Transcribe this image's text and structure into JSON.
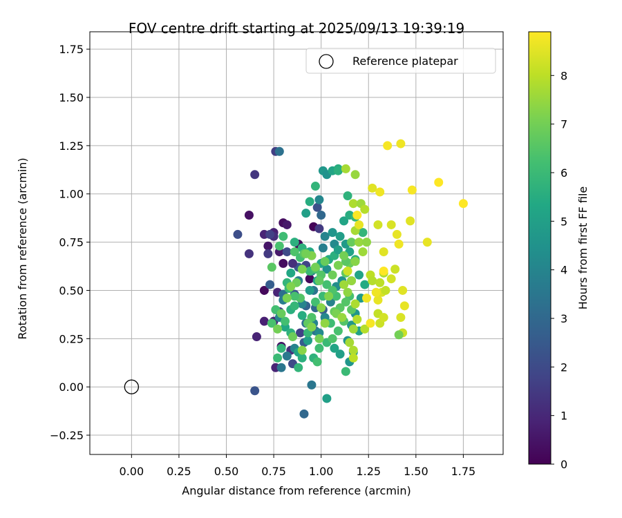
{
  "chart_data": {
    "type": "scatter",
    "title": "FOV centre drift starting at 2025/09/13 19:39:19",
    "xlabel": "Angular distance from reference (arcmin)",
    "ylabel": "Rotation from reference (arcmin)",
    "xlim": [
      -0.22,
      1.96
    ],
    "ylim": [
      -0.35,
      1.84
    ],
    "x_ticks": [
      0.0,
      0.25,
      0.5,
      0.75,
      1.0,
      1.25,
      1.5,
      1.75
    ],
    "x_tick_labels": [
      "0.00",
      "0.25",
      "0.50",
      "0.75",
      "1.00",
      "1.25",
      "1.50",
      "1.75"
    ],
    "y_ticks": [
      -0.25,
      0.0,
      0.25,
      0.5,
      0.75,
      1.0,
      1.25,
      1.5,
      1.75
    ],
    "y_tick_labels": [
      "−0.25",
      "0.00",
      "0.25",
      "0.50",
      "0.75",
      "1.00",
      "1.25",
      "1.50",
      "1.75"
    ],
    "grid": true,
    "legend": {
      "position": "top-right",
      "entries": [
        "Reference platepar"
      ]
    },
    "reference_point": {
      "name": "Reference platepar",
      "x": 0.0,
      "y": 0.0
    },
    "colorbar": {
      "label": "Hours from first FF file",
      "colormap": "viridis",
      "range": [
        0,
        8.9
      ],
      "ticks": [
        0,
        1,
        2,
        3,
        4,
        5,
        6,
        7,
        8
      ],
      "tick_labels": [
        "0",
        "1",
        "2",
        "3",
        "4",
        "5",
        "6",
        "7",
        "8"
      ]
    },
    "points": [
      [
        0.62,
        0.89,
        0.4
      ],
      [
        0.7,
        0.79,
        0.9
      ],
      [
        0.75,
        0.8,
        0.8
      ],
      [
        0.8,
        0.85,
        0.3
      ],
      [
        0.82,
        0.84,
        0.6
      ],
      [
        0.88,
        0.74,
        0.1
      ],
      [
        0.72,
        0.73,
        0.5
      ],
      [
        0.78,
        0.7,
        0.6
      ],
      [
        0.75,
        0.78,
        1.2
      ],
      [
        0.7,
        0.5,
        0.2
      ],
      [
        0.77,
        0.49,
        0.9
      ],
      [
        0.7,
        0.34,
        0.8
      ],
      [
        0.66,
        0.26,
        0.9
      ],
      [
        0.75,
        0.34,
        1.0
      ],
      [
        0.79,
        0.21,
        0.5
      ],
      [
        0.8,
        0.64,
        0.3
      ],
      [
        0.94,
        0.56,
        0.2
      ],
      [
        0.96,
        0.83,
        0.1
      ],
      [
        0.73,
        0.79,
        1.7
      ],
      [
        0.56,
        0.79,
        2.1
      ],
      [
        0.62,
        0.69,
        1.3
      ],
      [
        0.65,
        1.1,
        1.4
      ],
      [
        0.76,
        1.22,
        1.6
      ],
      [
        0.78,
        1.22,
        3.3
      ],
      [
        0.72,
        0.69,
        1.5
      ],
      [
        0.73,
        0.53,
        2.6
      ],
      [
        0.78,
        0.39,
        1.6
      ],
      [
        0.84,
        0.19,
        1.2
      ],
      [
        0.85,
        0.12,
        2.0
      ],
      [
        0.76,
        0.1,
        0.9
      ],
      [
        0.65,
        -0.02,
        2.3
      ],
      [
        0.89,
        0.28,
        1.7
      ],
      [
        0.91,
        0.23,
        2.6
      ],
      [
        0.86,
        0.48,
        2.3
      ],
      [
        0.8,
        0.48,
        3.2
      ],
      [
        0.88,
        0.62,
        2.5
      ],
      [
        0.95,
        0.68,
        2.7
      ],
      [
        0.92,
        0.42,
        2.8
      ],
      [
        0.97,
        0.41,
        3.0
      ],
      [
        0.98,
        0.93,
        2.2
      ],
      [
        1.0,
        0.89,
        3.0
      ],
      [
        0.99,
        0.82,
        1.5
      ],
      [
        0.85,
        0.64,
        1.2
      ],
      [
        0.92,
        0.63,
        1.8
      ],
      [
        0.82,
        0.7,
        2.0
      ],
      [
        0.96,
        0.5,
        3.4
      ],
      [
        0.97,
        0.29,
        3.3
      ],
      [
        1.01,
        0.4,
        2.6
      ],
      [
        0.95,
        0.01,
        3.5
      ],
      [
        0.91,
        -0.14,
        3.0
      ],
      [
        0.79,
        0.1,
        3.5
      ],
      [
        0.82,
        0.16,
        3.6
      ],
      [
        0.86,
        0.2,
        3.9
      ],
      [
        0.78,
        0.36,
        4.0
      ],
      [
        0.8,
        0.45,
        3.7
      ],
      [
        0.9,
        0.43,
        4.0
      ],
      [
        0.88,
        0.55,
        3.8
      ],
      [
        0.95,
        0.6,
        3.6
      ],
      [
        1.01,
        0.72,
        3.8
      ],
      [
        0.92,
        0.33,
        3.2
      ],
      [
        0.96,
        0.33,
        4.0
      ],
      [
        0.99,
        0.28,
        4.2
      ],
      [
        1.02,
        0.36,
        4.1
      ],
      [
        1.05,
        0.44,
        3.9
      ],
      [
        1.08,
        0.52,
        4.3
      ],
      [
        1.11,
        0.55,
        4.5
      ],
      [
        1.03,
        0.61,
        4.4
      ],
      [
        1.07,
        0.74,
        4.2
      ],
      [
        1.02,
        0.78,
        4.0
      ],
      [
        0.99,
        0.97,
        4.1
      ],
      [
        1.01,
        1.12,
        4.7
      ],
      [
        1.03,
        1.1,
        4.5
      ],
      [
        1.06,
        1.12,
        5.2
      ],
      [
        1.09,
        1.13,
        5.5
      ],
      [
        1.09,
        1.12,
        5.6
      ],
      [
        1.06,
        0.8,
        4.6
      ],
      [
        1.1,
        0.78,
        4.9
      ],
      [
        1.13,
        0.74,
        4.8
      ],
      [
        1.15,
        0.7,
        5.1
      ],
      [
        1.18,
        0.66,
        5.6
      ],
      [
        1.16,
        0.55,
        5.0
      ],
      [
        1.2,
        0.58,
        5.2
      ],
      [
        1.23,
        0.53,
        5.4
      ],
      [
        1.21,
        0.46,
        4.8
      ],
      [
        1.18,
        0.38,
        4.6
      ],
      [
        1.16,
        0.32,
        4.7
      ],
      [
        1.2,
        0.29,
        5.1
      ],
      [
        1.14,
        0.24,
        4.5
      ],
      [
        1.17,
        0.18,
        4.8
      ],
      [
        1.15,
        0.13,
        4.6
      ],
      [
        1.1,
        0.17,
        5.0
      ],
      [
        1.07,
        0.2,
        5.2
      ],
      [
        1.13,
        0.08,
        6.0
      ],
      [
        1.03,
        -0.06,
        5.0
      ],
      [
        0.93,
        0.24,
        5.0
      ],
      [
        0.94,
        0.5,
        4.9
      ],
      [
        0.98,
        0.55,
        5.1
      ],
      [
        1.0,
        0.64,
        5.3
      ],
      [
        1.04,
        0.66,
        5.4
      ],
      [
        1.07,
        0.68,
        5.6
      ],
      [
        1.09,
        0.71,
        5.0
      ],
      [
        1.12,
        0.86,
        5.2
      ],
      [
        1.15,
        0.89,
        5.5
      ],
      [
        1.18,
        0.88,
        5.9
      ],
      [
        1.22,
        0.8,
        5.8
      ],
      [
        1.14,
        0.99,
        5.7
      ],
      [
        0.97,
        1.04,
        5.8
      ],
      [
        0.94,
        0.96,
        5.5
      ],
      [
        0.92,
        0.9,
        5.0
      ],
      [
        0.94,
        0.7,
        5.4
      ],
      [
        0.9,
        0.72,
        5.7
      ],
      [
        0.86,
        0.75,
        5.6
      ],
      [
        0.84,
        0.59,
        5.3
      ],
      [
        0.82,
        0.54,
        5.8
      ],
      [
        0.84,
        0.4,
        5.6
      ],
      [
        0.81,
        0.31,
        5.3
      ],
      [
        0.84,
        0.28,
        5.7
      ],
      [
        0.86,
        0.42,
        5.9
      ],
      [
        0.9,
        0.37,
        5.5
      ],
      [
        0.93,
        0.28,
        5.9
      ],
      [
        0.88,
        0.18,
        5.2
      ],
      [
        0.9,
        0.15,
        5.6
      ],
      [
        0.88,
        0.1,
        5.8
      ],
      [
        0.96,
        0.15,
        5.7
      ],
      [
        0.98,
        0.13,
        6.2
      ],
      [
        0.99,
        0.2,
        6.1
      ],
      [
        1.03,
        0.23,
        6.0
      ],
      [
        1.06,
        0.25,
        6.4
      ],
      [
        1.09,
        0.29,
        6.3
      ],
      [
        1.12,
        0.34,
        6.5
      ],
      [
        1.16,
        0.4,
        6.6
      ],
      [
        1.15,
        0.47,
        6.3
      ],
      [
        1.08,
        0.47,
        6.2
      ],
      [
        1.05,
        0.33,
        6.1
      ],
      [
        1.01,
        0.47,
        6.0
      ],
      [
        0.97,
        0.44,
        6.2
      ],
      [
        0.95,
        0.36,
        6.4
      ],
      [
        0.93,
        0.33,
        6.7
      ],
      [
        0.89,
        0.46,
        6.5
      ],
      [
        0.86,
        0.47,
        6.3
      ],
      [
        0.83,
        0.51,
        6.0
      ],
      [
        0.81,
        0.34,
        6.2
      ],
      [
        0.77,
        0.15,
        6.0
      ],
      [
        0.79,
        0.2,
        5.8
      ],
      [
        0.74,
        0.33,
        6.3
      ],
      [
        0.76,
        0.4,
        6.2
      ],
      [
        0.78,
        0.73,
        6.3
      ],
      [
        0.8,
        0.78,
        6.1
      ],
      [
        0.86,
        0.7,
        6.4
      ],
      [
        0.89,
        0.67,
        6.2
      ],
      [
        0.91,
        0.69,
        6.6
      ],
      [
        0.94,
        0.6,
        6.0
      ],
      [
        0.97,
        0.61,
        6.3
      ],
      [
        1.0,
        0.58,
        6.5
      ],
      [
        1.03,
        0.53,
        6.2
      ],
      [
        1.06,
        0.5,
        6.4
      ],
      [
        1.07,
        0.39,
        6.8
      ],
      [
        1.1,
        0.41,
        6.6
      ],
      [
        1.13,
        0.44,
        6.5
      ],
      [
        1.13,
        0.59,
        6.7
      ],
      [
        1.15,
        0.64,
        6.9
      ],
      [
        1.16,
        0.75,
        6.8
      ],
      [
        1.13,
        0.65,
        6.6
      ],
      [
        1.12,
        0.68,
        7.0
      ],
      [
        1.09,
        0.63,
        7.1
      ],
      [
        1.06,
        0.58,
        6.9
      ],
      [
        1.02,
        0.65,
        6.8
      ],
      [
        0.99,
        0.55,
        6.7
      ],
      [
        0.97,
        0.62,
        7.0
      ],
      [
        0.95,
        0.68,
        7.2
      ],
      [
        0.92,
        0.69,
        7.0
      ],
      [
        0.9,
        0.61,
        7.1
      ],
      [
        0.87,
        0.54,
        6.9
      ],
      [
        0.84,
        0.52,
        7.2
      ],
      [
        0.82,
        0.46,
        7.1
      ],
      [
        0.79,
        0.38,
        6.8
      ],
      [
        0.77,
        0.3,
        7.0
      ],
      [
        0.74,
        0.62,
        6.6
      ],
      [
        0.85,
        0.26,
        6.9
      ],
      [
        0.9,
        0.19,
        7.3
      ],
      [
        0.95,
        0.31,
        7.2
      ],
      [
        0.99,
        0.25,
        7.0
      ],
      [
        1.02,
        0.33,
        7.4
      ],
      [
        1.0,
        0.41,
        7.3
      ],
      [
        1.04,
        0.47,
        7.2
      ],
      [
        1.08,
        0.38,
        7.1
      ],
      [
        1.11,
        0.36,
        7.5
      ],
      [
        1.14,
        0.49,
        7.4
      ],
      [
        1.12,
        0.53,
        7.6
      ],
      [
        1.16,
        0.55,
        7.5
      ],
      [
        1.18,
        0.65,
        7.3
      ],
      [
        1.2,
        0.75,
        7.5
      ],
      [
        1.22,
        0.7,
        7.6
      ],
      [
        1.24,
        0.75,
        7.4
      ],
      [
        1.18,
        0.81,
        7.7
      ],
      [
        1.17,
        0.95,
        7.8
      ],
      [
        1.21,
        0.95,
        7.6
      ],
      [
        1.23,
        0.92,
        7.9
      ],
      [
        1.18,
        1.1,
        7.5
      ],
      [
        1.13,
        1.13,
        7.7
      ],
      [
        1.18,
        0.43,
        7.8
      ],
      [
        1.19,
        0.35,
        7.9
      ],
      [
        1.17,
        0.3,
        7.6
      ],
      [
        1.15,
        0.23,
        7.7
      ],
      [
        1.17,
        0.19,
        7.8
      ],
      [
        1.17,
        0.15,
        8.0
      ],
      [
        1.23,
        0.3,
        7.9
      ],
      [
        1.26,
        0.58,
        8.0
      ],
      [
        1.27,
        0.55,
        7.9
      ],
      [
        1.31,
        0.54,
        8.0
      ],
      [
        1.33,
        0.59,
        7.8
      ],
      [
        1.3,
        0.38,
        8.1
      ],
      [
        1.31,
        0.33,
        8.2
      ],
      [
        1.33,
        0.36,
        8.3
      ],
      [
        1.32,
        0.49,
        8.4
      ],
      [
        1.34,
        0.5,
        8.1
      ],
      [
        1.37,
        0.56,
        8.3
      ],
      [
        1.39,
        0.61,
        8.2
      ],
      [
        1.43,
        0.5,
        8.5
      ],
      [
        1.44,
        0.42,
        8.6
      ],
      [
        1.42,
        0.36,
        8.4
      ],
      [
        1.43,
        0.28,
        8.2
      ],
      [
        1.3,
        0.84,
        8.3
      ],
      [
        1.33,
        0.7,
        8.5
      ],
      [
        1.37,
        0.84,
        8.4
      ],
      [
        1.4,
        0.79,
        8.6
      ],
      [
        1.41,
        0.74,
        8.7
      ],
      [
        1.47,
        0.86,
        8.5
      ],
      [
        1.56,
        0.75,
        8.6
      ],
      [
        1.27,
        1.03,
        8.5
      ],
      [
        1.31,
        1.01,
        8.7
      ],
      [
        1.35,
        1.25,
        8.8
      ],
      [
        1.42,
        1.26,
        8.7
      ],
      [
        1.48,
        1.02,
        8.8
      ],
      [
        1.62,
        1.06,
        8.9
      ],
      [
        1.75,
        0.95,
        8.9
      ],
      [
        1.2,
        0.84,
        8.6
      ],
      [
        1.24,
        0.46,
        8.7
      ],
      [
        1.3,
        0.45,
        8.6
      ],
      [
        1.41,
        0.27,
        7.0
      ],
      [
        1.33,
        0.6,
        8.9
      ],
      [
        1.26,
        0.33,
        8.8
      ],
      [
        1.29,
        0.49,
        8.7
      ],
      [
        1.19,
        0.89,
        8.9
      ],
      [
        1.14,
        0.6,
        8.2
      ]
    ]
  }
}
